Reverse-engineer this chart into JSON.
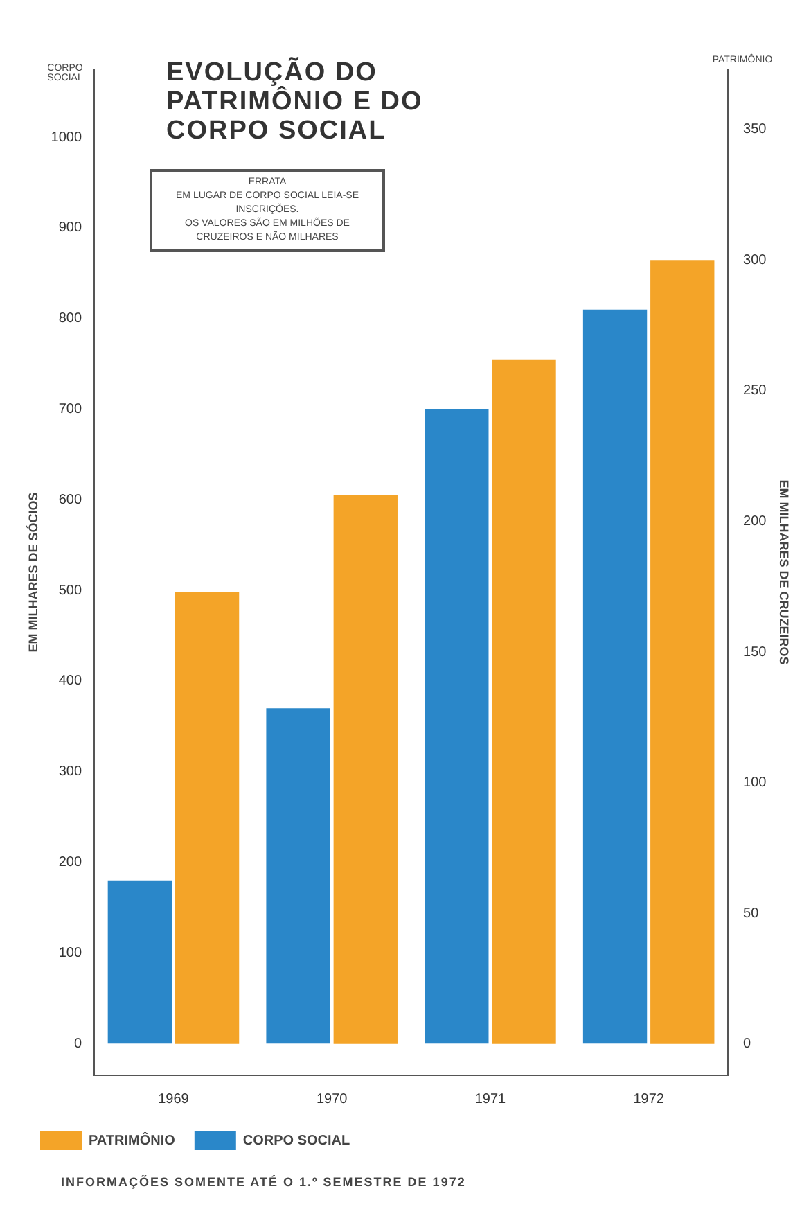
{
  "chart_data": {
    "type": "bar",
    "title": "EVOLUÇÃO DO PATRIMÔNIO E DO CORPO SOCIAL",
    "categories": [
      "1969",
      "1970",
      "1971",
      "1972"
    ],
    "series": [
      {
        "name": "CORPO SOCIAL",
        "color": "#2a87c9",
        "values": [
          180,
          370,
          700,
          810
        ],
        "axis": "y"
      },
      {
        "name": "PATRIMÔNIO",
        "color": "#f4a428",
        "values": [
          173,
          210,
          262,
          300
        ],
        "axis": "y2"
      }
    ],
    "ylabel": "EM MILHARES DE SÓCIOS",
    "y2label": "EM MILHARES DE CRUZEIROS",
    "ylim": [
      -35,
      1075
    ],
    "yticks": [
      0,
      100,
      200,
      300,
      400,
      500,
      600,
      700,
      800,
      900,
      1000
    ],
    "y2lim": [
      -12,
      373
    ],
    "y2ticks": [
      0,
      50,
      100,
      150,
      200,
      250,
      300,
      350
    ],
    "annotations": [
      "CORPO SOCIAL",
      "PATRIMÔNIO",
      "ERRATA\nEM LUGAR DE CORPO SOCIAL LEIA-SE INSCRIÇÕES.\nOS VALORES SÃO EM MILHÕES DE CRUZEIROS E NÃO MILHARES",
      "INFORMAÇÕES SOMENTE ATÉ O 1.º SEMESTRE DE 1972"
    ],
    "legend": "bottom left",
    "grid": false
  }
}
